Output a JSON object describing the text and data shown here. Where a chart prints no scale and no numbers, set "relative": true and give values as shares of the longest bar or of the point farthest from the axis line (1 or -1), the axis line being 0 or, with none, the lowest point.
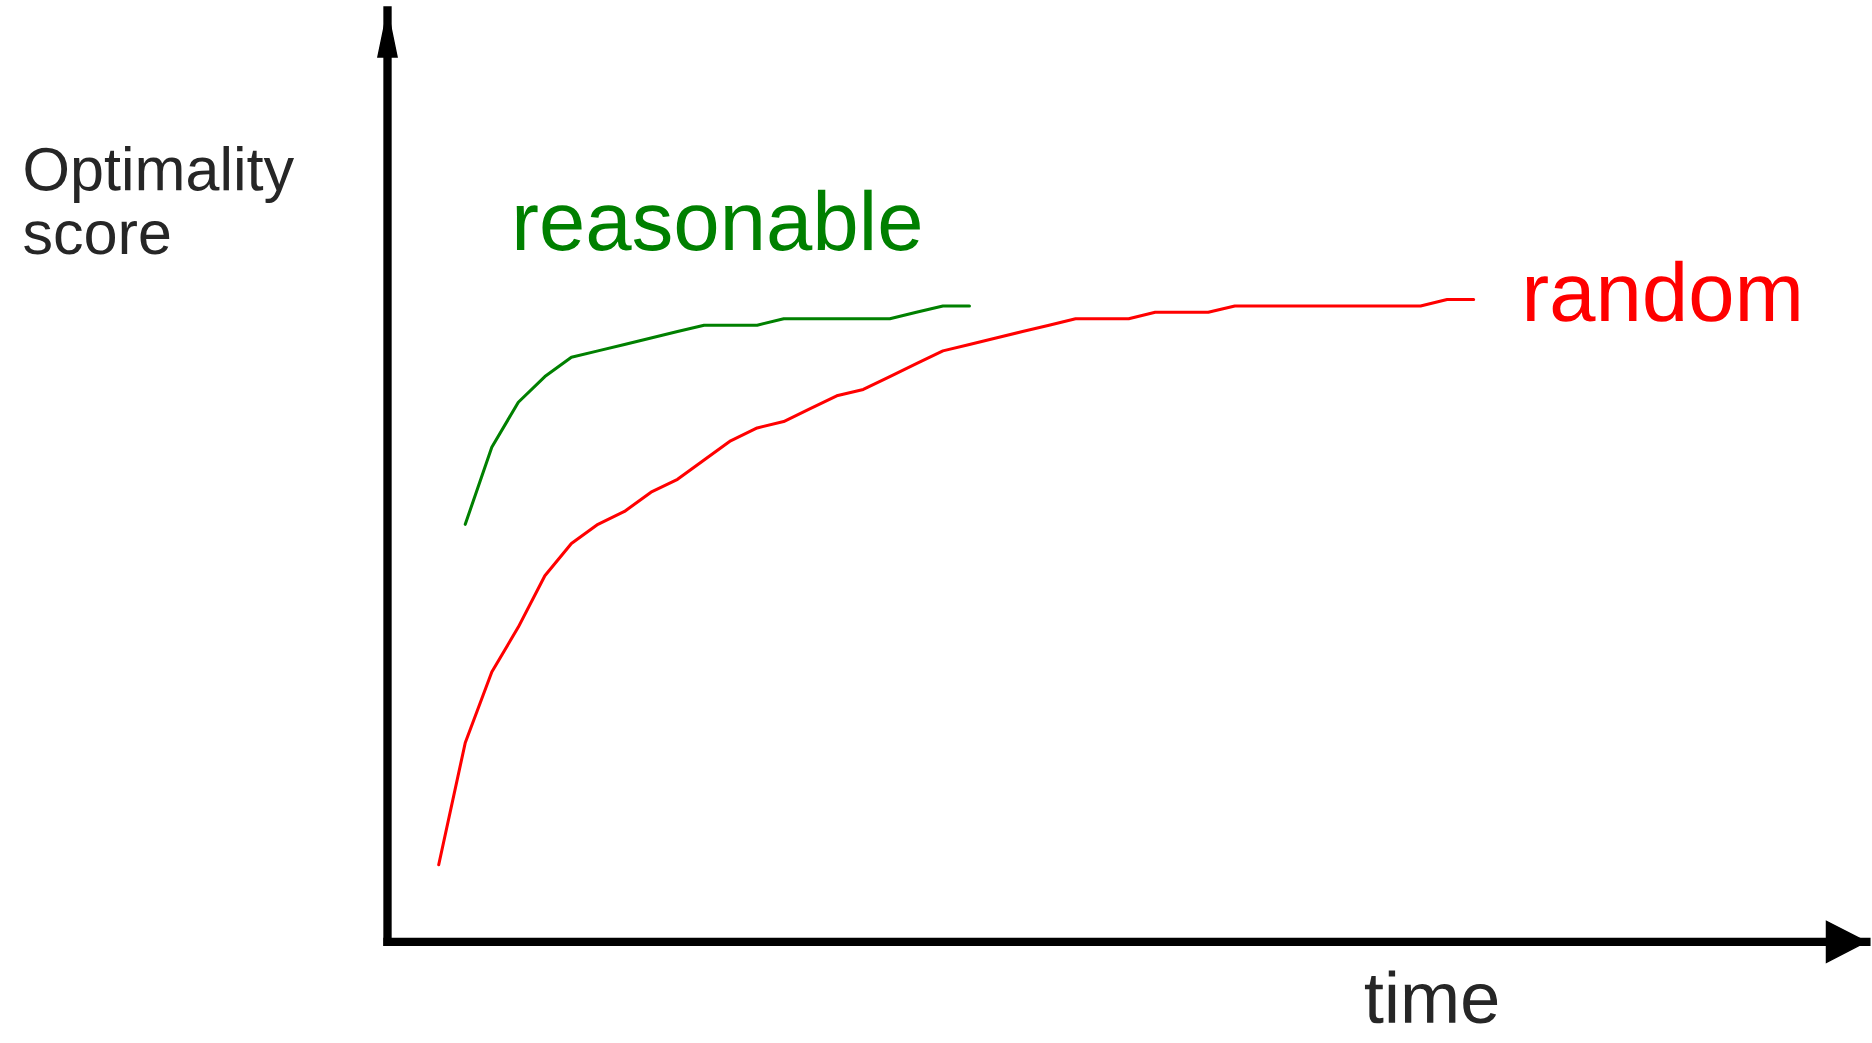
{
  "chart_data": {
    "type": "line",
    "relative": true,
    "xlabel": "time",
    "ylabel": "Optimality\nscore",
    "categories": [
      null,
      null,
      null,
      null,
      null,
      null,
      null,
      null,
      null,
      null,
      null,
      null,
      null,
      null,
      null,
      null,
      null,
      null,
      null,
      null,
      null,
      null,
      null,
      null,
      null,
      null,
      null,
      null,
      null,
      null,
      null,
      null,
      null,
      null,
      null,
      null,
      null,
      null,
      null,
      null
    ],
    "series": [
      {
        "name": "reasonable",
        "color": "#008000",
        "values": [
          null,
          0.65,
          0.77,
          0.84,
          0.88,
          0.91,
          0.92,
          0.93,
          0.94,
          0.95,
          0.96,
          0.96,
          0.96,
          0.97,
          0.97,
          0.97,
          0.97,
          0.97,
          0.98,
          0.99,
          0.99,
          null,
          null,
          null,
          null,
          null,
          null,
          null,
          null,
          null,
          null,
          null,
          null,
          null,
          null,
          null,
          null,
          null,
          null,
          null
        ]
      },
      {
        "name": "random",
        "color": "#ff0000",
        "values": [
          0.12,
          0.31,
          0.42,
          0.49,
          0.57,
          0.62,
          0.65,
          0.67,
          0.7,
          0.72,
          0.75,
          0.78,
          0.8,
          0.81,
          0.83,
          0.85,
          0.86,
          0.88,
          0.9,
          0.92,
          0.93,
          0.94,
          0.95,
          0.96,
          0.97,
          0.97,
          0.97,
          0.98,
          0.98,
          0.98,
          0.99,
          0.99,
          0.99,
          0.99,
          0.99,
          0.99,
          0.99,
          0.99,
          1,
          1
        ]
      }
    ],
    "marker": "none",
    "line_style": "solid"
  }
}
